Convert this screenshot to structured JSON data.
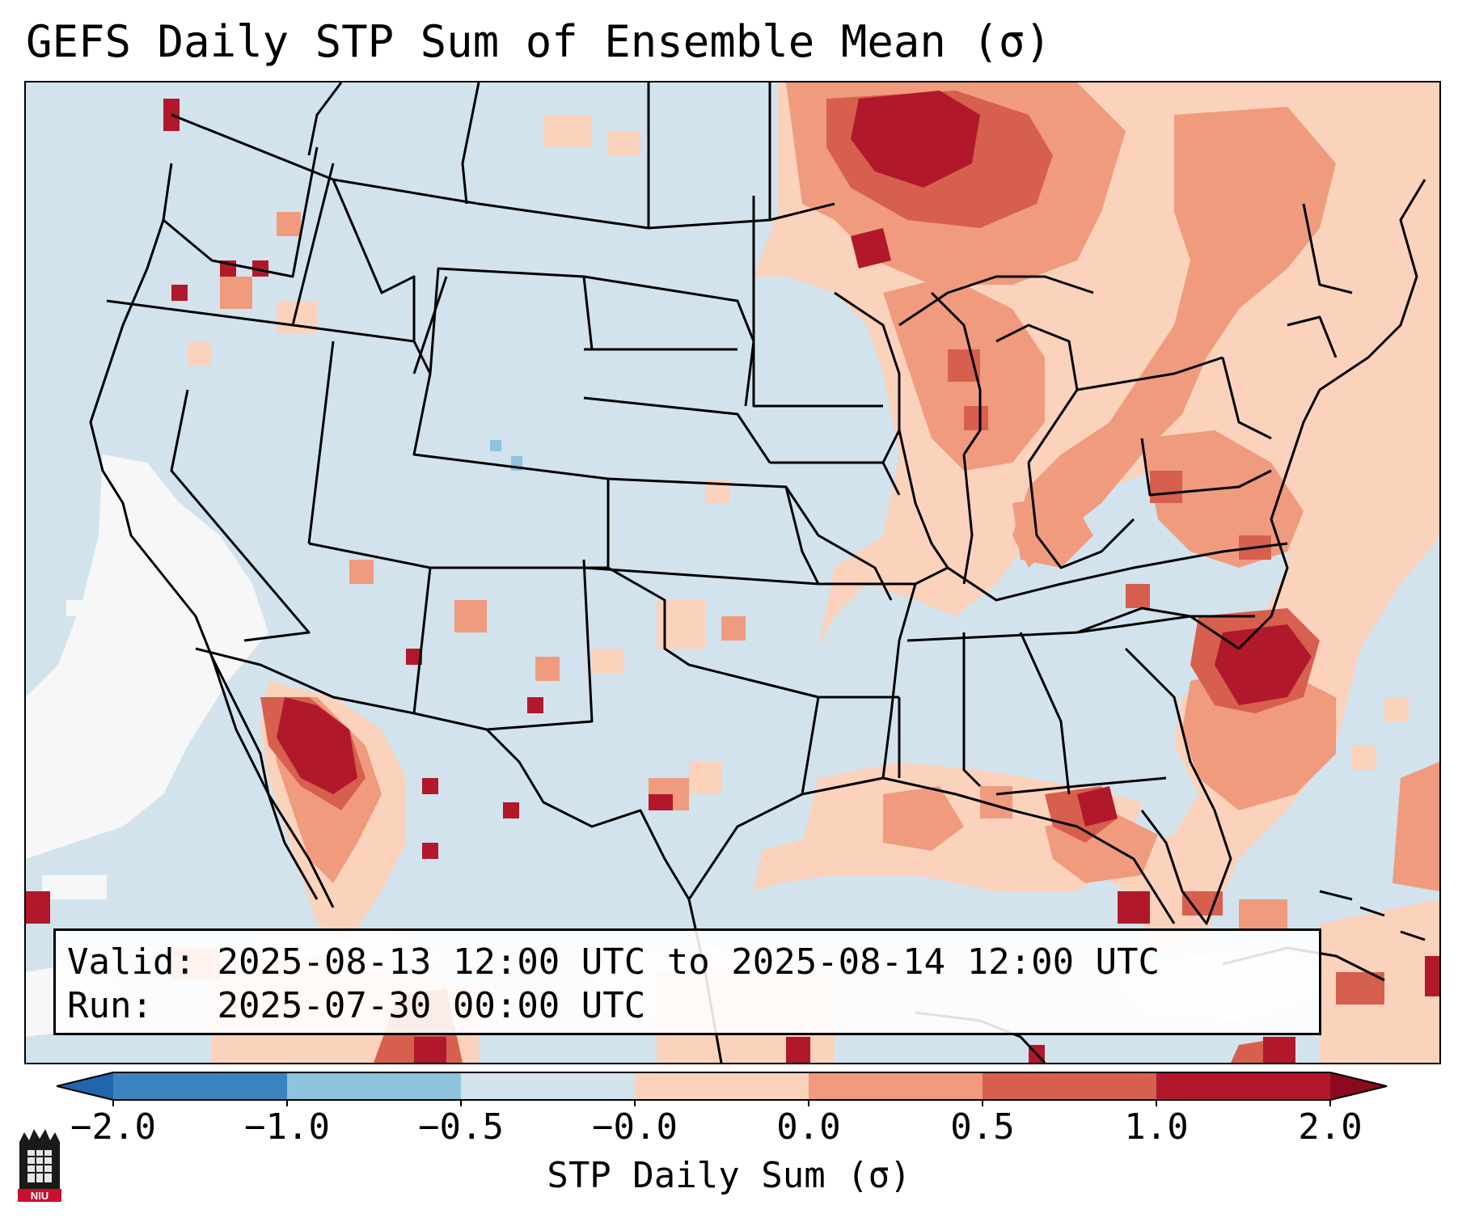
{
  "title": "GEFS Daily STP Sum of Ensemble Mean (σ)",
  "info": {
    "valid_label": "Valid:",
    "valid_text": "2025-08-13 12:00 UTC to 2025-08-14 12:00 UTC",
    "run_label": "Run:",
    "run_text": "2025-07-30 00:00 UTC"
  },
  "colorbar": {
    "label": "STP Daily Sum (σ)",
    "ticks": [
      "−2.0",
      "−1.0",
      "−0.5",
      "−0.0",
      "0.0",
      "0.5",
      "1.0",
      "2.0"
    ],
    "colors": [
      "#3a85bf",
      "#8ec4de",
      "#d2e3ee",
      "#f7f7f7",
      "#fbd2bc",
      "#f09b7d",
      "#d6604d",
      "#b2182b"
    ],
    "under_color": "#2166ac",
    "over_color": "#8b0a1e"
  },
  "map": {
    "region": "Continental United States",
    "background_color": "#d2e3ee",
    "anomaly_areas": [
      {
        "name": "Upper Midwest / Ontario",
        "level": "high"
      },
      {
        "name": "Great Lakes to Northeast",
        "level": "moderate"
      },
      {
        "name": "Mid-Atlantic coast / Carolinas offshore",
        "level": "high"
      },
      {
        "name": "Gulf of Mexico coast",
        "level": "moderate"
      },
      {
        "name": "Baja California / Sonora",
        "level": "high"
      },
      {
        "name": "Pacific offshore California",
        "level": "neutral"
      }
    ]
  },
  "logo": {
    "text": "NIU"
  }
}
